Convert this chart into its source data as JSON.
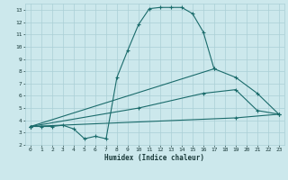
{
  "title": "",
  "xlabel": "Humidex (Indice chaleur)",
  "xlim": [
    -0.5,
    23.5
  ],
  "ylim": [
    2,
    13.5
  ],
  "xticks": [
    0,
    1,
    2,
    3,
    4,
    5,
    6,
    7,
    8,
    9,
    10,
    11,
    12,
    13,
    14,
    15,
    16,
    17,
    18,
    19,
    20,
    21,
    22,
    23
  ],
  "yticks": [
    2,
    3,
    4,
    5,
    6,
    7,
    8,
    9,
    10,
    11,
    12,
    13
  ],
  "bg_color": "#cce8ec",
  "grid_color": "#aacfd6",
  "line_color": "#1a6b6b",
  "curve1_x": [
    0,
    1,
    2,
    3,
    4,
    5,
    6,
    7,
    8,
    9,
    10,
    11,
    12,
    13,
    14,
    15,
    16,
    17
  ],
  "curve1_y": [
    3.5,
    3.5,
    3.5,
    3.6,
    3.3,
    2.5,
    2.7,
    2.5,
    7.5,
    9.7,
    11.8,
    13.1,
    13.2,
    13.2,
    13.2,
    12.7,
    11.2,
    8.2
  ],
  "curve2_x": [
    0,
    17,
    19,
    21,
    23
  ],
  "curve2_y": [
    3.5,
    8.2,
    7.5,
    6.2,
    4.5
  ],
  "curve3_x": [
    0,
    10,
    16,
    19,
    21,
    23
  ],
  "curve3_y": [
    3.5,
    5.0,
    6.2,
    6.5,
    4.8,
    4.5
  ],
  "curve4_x": [
    0,
    19,
    23
  ],
  "curve4_y": [
    3.5,
    4.2,
    4.5
  ]
}
